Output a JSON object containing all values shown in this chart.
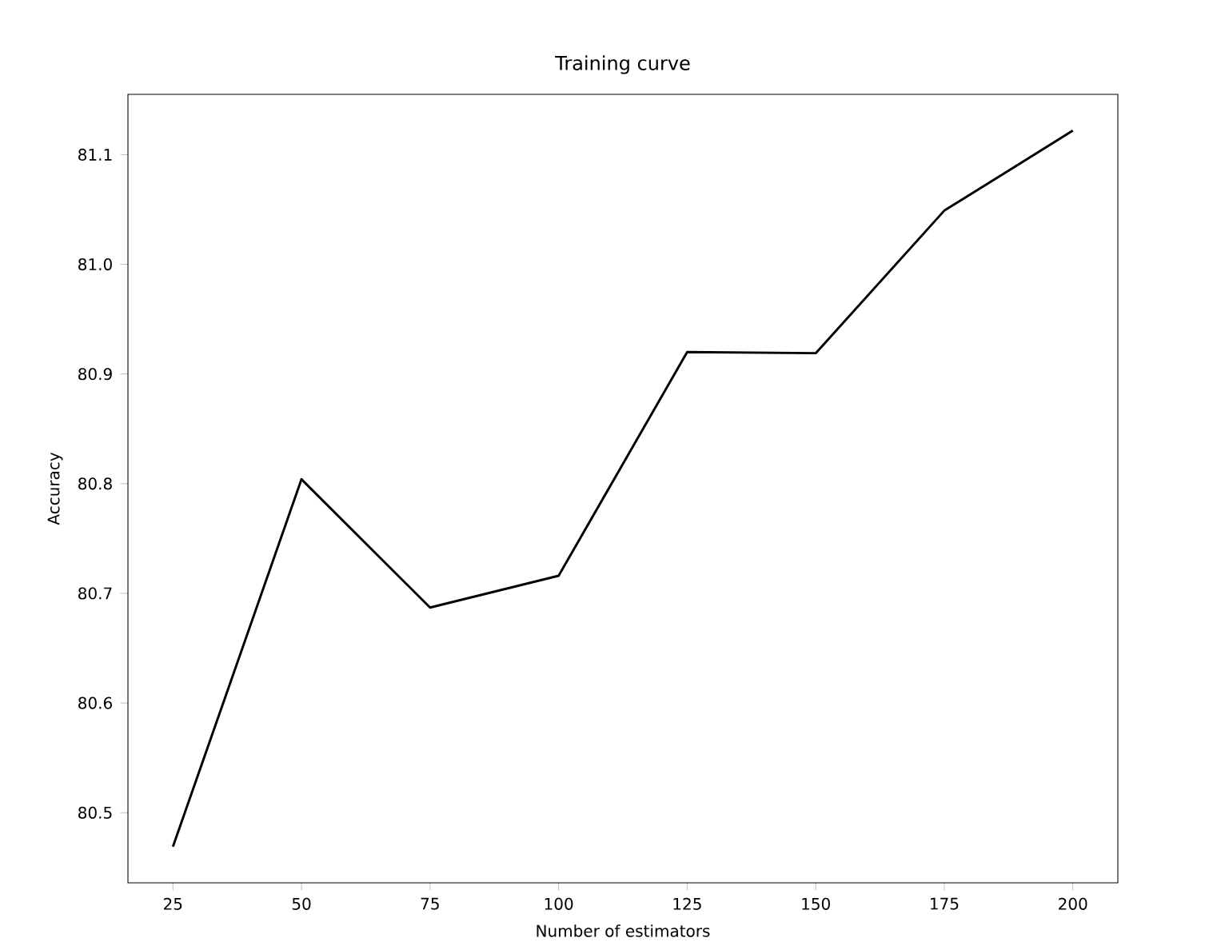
{
  "chart_data": {
    "type": "line",
    "title": "Training curve",
    "xlabel": "Number of estimators",
    "ylabel": "Accuracy",
    "x": [
      25,
      50,
      75,
      100,
      125,
      150,
      175,
      200
    ],
    "series": [
      {
        "color": "#000000",
        "values": [
          80.469,
          80.804,
          80.687,
          80.716,
          80.92,
          80.919,
          81.049,
          81.122
        ]
      }
    ],
    "xlim": [
      16.25,
      208.75
    ],
    "ylim": [
      80.436,
      81.155
    ],
    "xticks": [
      25,
      50,
      75,
      100,
      125,
      150,
      175,
      200
    ],
    "yticks": [
      {
        "value": 80.5,
        "label": "80.5"
      },
      {
        "value": 80.6,
        "label": "80.6"
      },
      {
        "value": 80.7,
        "label": "80.7"
      },
      {
        "value": 80.8,
        "label": "80.8"
      },
      {
        "value": 80.9,
        "label": "80.9"
      },
      {
        "value": 81.0,
        "label": "81.0"
      },
      {
        "value": 81.1,
        "label": "81.1"
      }
    ],
    "marker": "none",
    "line_style": "solid"
  }
}
